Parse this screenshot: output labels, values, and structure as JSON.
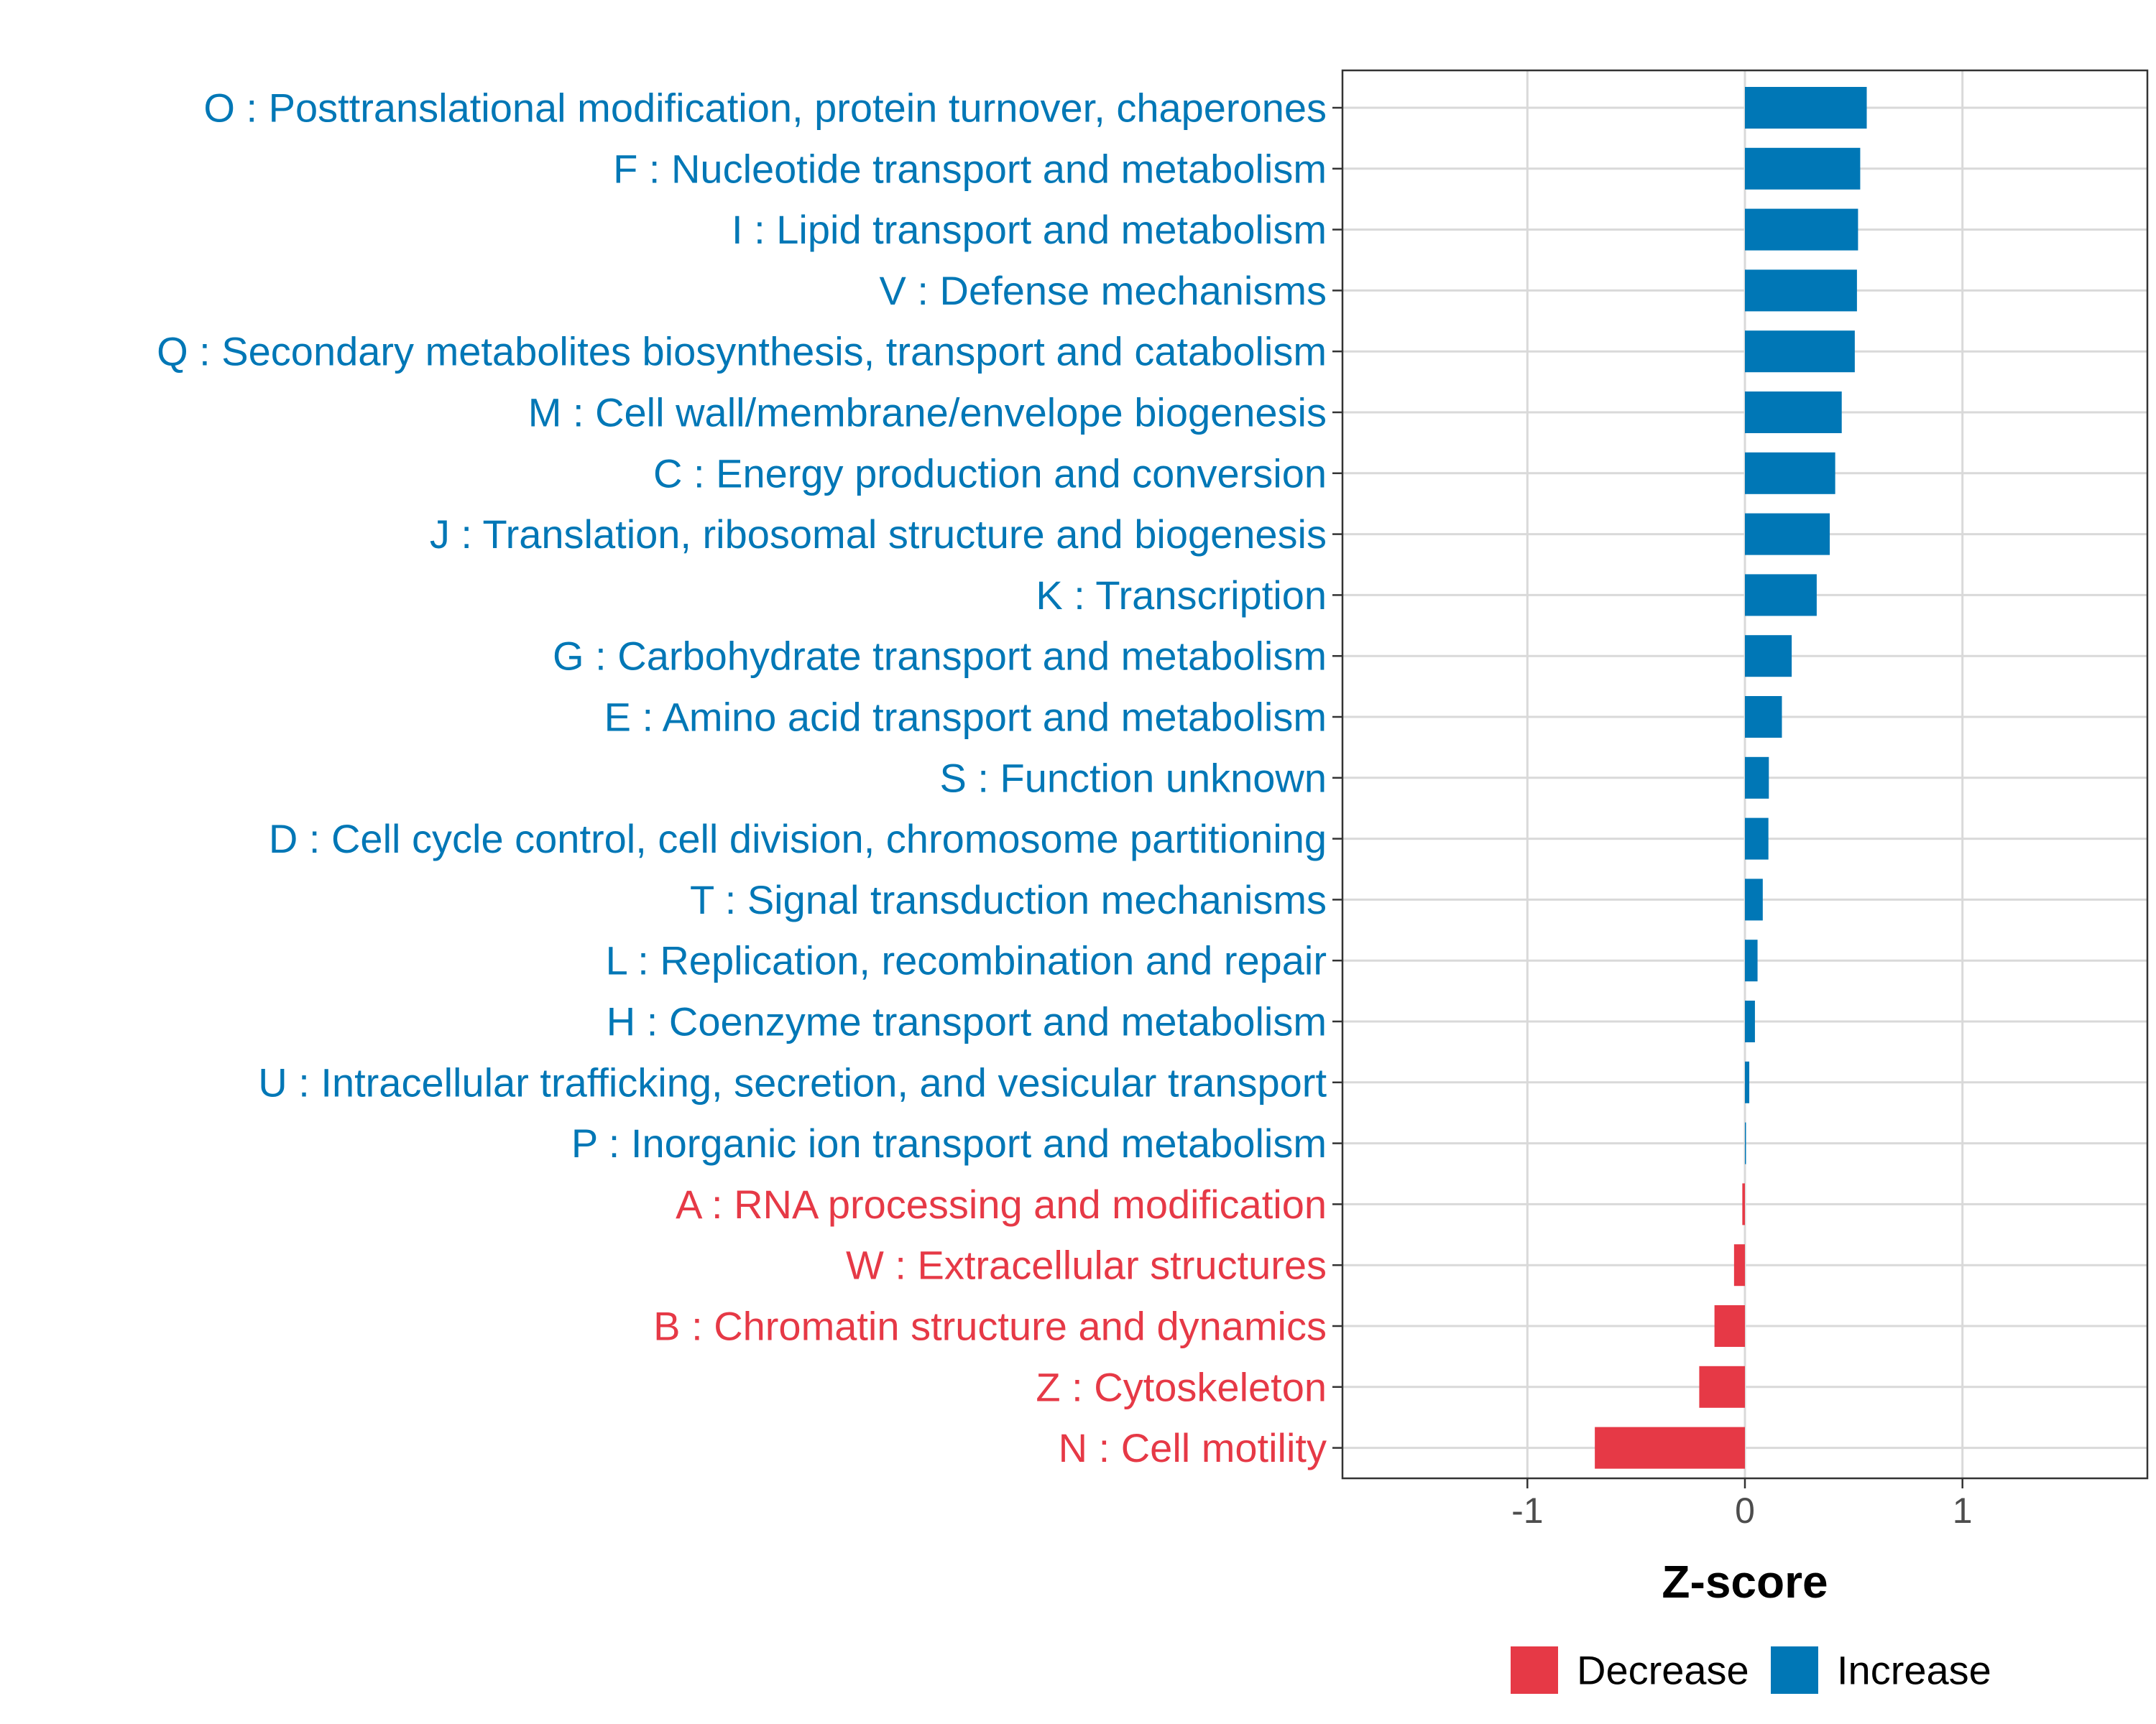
{
  "chart_data": {
    "type": "bar",
    "orientation": "horizontal",
    "xlabel": "Z-score",
    "xlim": [
      -1.85,
      1.85
    ],
    "xticks": [
      -1,
      0,
      1
    ],
    "xtick_labels": [
      "-1",
      "0",
      "1"
    ],
    "grid": true,
    "legend_position": "bottom",
    "colors": {
      "Decrease": "#E63946",
      "Increase": "#0077B6"
    },
    "legend": [
      {
        "name": "Decrease",
        "color": "#E63946"
      },
      {
        "name": "Increase",
        "color": "#0077B6"
      }
    ],
    "bars": [
      {
        "label": "O : Posttranslational modification, protein turnover, chaperones",
        "value": 0.56,
        "direction": "Increase"
      },
      {
        "label": "F : Nucleotide transport and metabolism",
        "value": 0.53,
        "direction": "Increase"
      },
      {
        "label": "I : Lipid transport and metabolism",
        "value": 0.52,
        "direction": "Increase"
      },
      {
        "label": "V : Defense mechanisms",
        "value": 0.515,
        "direction": "Increase"
      },
      {
        "label": "Q : Secondary metabolites biosynthesis, transport and catabolism",
        "value": 0.505,
        "direction": "Increase"
      },
      {
        "label": "M : Cell wall/membrane/envelope biogenesis",
        "value": 0.445,
        "direction": "Increase"
      },
      {
        "label": "C : Energy production and conversion",
        "value": 0.415,
        "direction": "Increase"
      },
      {
        "label": "J : Translation, ribosomal structure and biogenesis",
        "value": 0.39,
        "direction": "Increase"
      },
      {
        "label": "K : Transcription",
        "value": 0.33,
        "direction": "Increase"
      },
      {
        "label": "G : Carbohydrate transport and metabolism",
        "value": 0.215,
        "direction": "Increase"
      },
      {
        "label": "E : Amino acid transport and metabolism",
        "value": 0.17,
        "direction": "Increase"
      },
      {
        "label": "S : Function unknown",
        "value": 0.11,
        "direction": "Increase"
      },
      {
        "label": "D : Cell cycle control, cell division, chromosome partitioning",
        "value": 0.108,
        "direction": "Increase"
      },
      {
        "label": "T : Signal transduction mechanisms",
        "value": 0.082,
        "direction": "Increase"
      },
      {
        "label": "L : Replication, recombination and repair",
        "value": 0.058,
        "direction": "Increase"
      },
      {
        "label": "H : Coenzyme transport and metabolism",
        "value": 0.046,
        "direction": "Increase"
      },
      {
        "label": "U : Intracellular trafficking, secretion, and vesicular transport",
        "value": 0.02,
        "direction": "Increase"
      },
      {
        "label": "P : Inorganic ion transport and metabolism",
        "value": 0.004,
        "direction": "Increase"
      },
      {
        "label": "A : RNA processing and modification",
        "value": -0.012,
        "direction": "Decrease"
      },
      {
        "label": "W : Extracellular structures",
        "value": -0.05,
        "direction": "Decrease"
      },
      {
        "label": "B : Chromatin structure and dynamics",
        "value": -0.14,
        "direction": "Decrease"
      },
      {
        "label": "Z : Cytoskeleton",
        "value": -0.21,
        "direction": "Decrease"
      },
      {
        "label": "N : Cell motility",
        "value": -0.69,
        "direction": "Decrease"
      }
    ]
  }
}
